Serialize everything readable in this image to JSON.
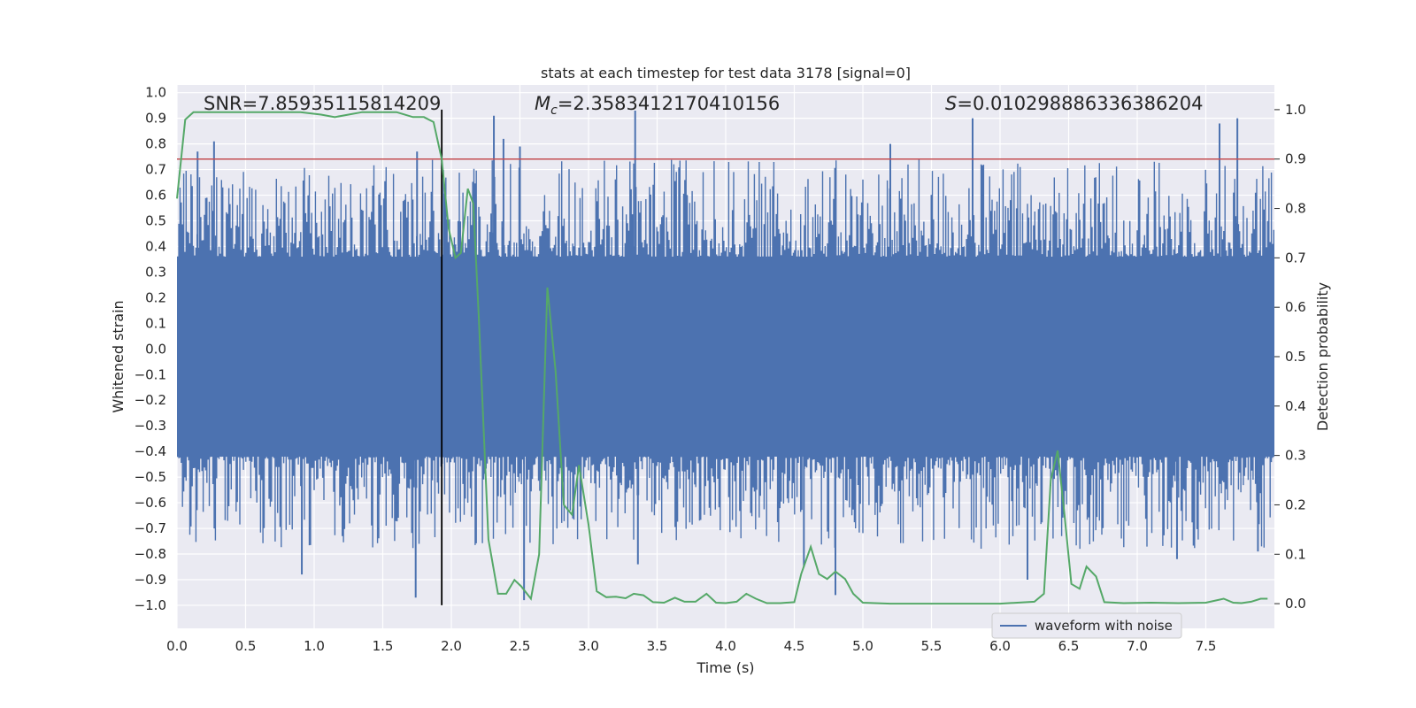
{
  "chart_data": {
    "type": "line",
    "title": "stats at each timestep for test data 3178 [signal=0]",
    "xlabel": "Time (s)",
    "ylabel": "Whitened strain",
    "y2label": "Detection probability",
    "xlim": [
      0.0,
      8.0
    ],
    "ylim": [
      -1.09,
      1.03
    ],
    "y2lim": [
      -0.05,
      1.05
    ],
    "xticks": [
      "0.0",
      "0.5",
      "1.0",
      "1.5",
      "2.0",
      "2.5",
      "3.0",
      "3.5",
      "4.0",
      "4.5",
      "5.0",
      "5.5",
      "6.0",
      "6.5",
      "7.0",
      "7.5"
    ],
    "yticks": [
      "1.0",
      "0.9",
      "0.8",
      "0.7",
      "0.6",
      "0.5",
      "0.4",
      "0.3",
      "0.2",
      "0.1",
      "0.0",
      "-0.1",
      "-0.2",
      "-0.3",
      "-0.4",
      "-0.5",
      "-0.6",
      "-0.7",
      "-0.8",
      "-0.9",
      "-1.0"
    ],
    "y2ticks": [
      "1.0",
      "0.9",
      "0.8",
      "0.7",
      "0.6",
      "0.5",
      "0.4",
      "0.3",
      "0.2",
      "0.1",
      "0.0"
    ],
    "grid": true,
    "annotations": {
      "snr": "SNR=7.85935115814209",
      "mc_symbol": "M",
      "mc_sub": "c",
      "mc_value": "=2.3583412170410156",
      "s_symbol": "S",
      "s_value": "=0.010298886336386204"
    },
    "threshold": 0.9,
    "vertical_marker_time": 1.93,
    "legend": {
      "label": "waveform with noise",
      "placement": "lower-right"
    },
    "series": [
      {
        "name": "waveform with noise",
        "color": "#4c72b0",
        "axis": "left",
        "description": "whitened strain noise, roughly +/-0.35 core with spikes to about +/-0.95",
        "core_range": [
          -0.42,
          0.36
        ],
        "spikes": [
          {
            "t": 0.15,
            "y": 0.77
          },
          {
            "t": 0.27,
            "y": 0.81
          },
          {
            "t": 0.91,
            "y": -0.88
          },
          {
            "t": 1.74,
            "y": -0.97
          },
          {
            "t": 1.75,
            "y": 0.77
          },
          {
            "t": 2.31,
            "y": 0.91
          },
          {
            "t": 2.38,
            "y": 0.82
          },
          {
            "t": 2.5,
            "y": 0.79
          },
          {
            "t": 2.53,
            "y": -0.98
          },
          {
            "t": 3.34,
            "y": 0.93
          },
          {
            "t": 3.36,
            "y": -0.84
          },
          {
            "t": 4.57,
            "y": -0.85
          },
          {
            "t": 4.8,
            "y": -0.96
          },
          {
            "t": 5.2,
            "y": 0.8
          },
          {
            "t": 5.8,
            "y": 0.9
          },
          {
            "t": 6.2,
            "y": -0.9
          },
          {
            "t": 7.29,
            "y": -0.82
          },
          {
            "t": 7.6,
            "y": 0.88
          },
          {
            "t": 7.73,
            "y": 0.9
          },
          {
            "t": 7.88,
            "y": -0.79
          }
        ]
      },
      {
        "name": "detection probability",
        "color": "#55a868",
        "axis": "right",
        "points": [
          [
            0.0,
            0.82
          ],
          [
            0.06,
            0.98
          ],
          [
            0.12,
            0.995
          ],
          [
            0.3,
            0.995
          ],
          [
            0.6,
            0.995
          ],
          [
            0.9,
            0.995
          ],
          [
            1.05,
            0.99
          ],
          [
            1.15,
            0.985
          ],
          [
            1.25,
            0.99
          ],
          [
            1.35,
            0.995
          ],
          [
            1.6,
            0.995
          ],
          [
            1.72,
            0.985
          ],
          [
            1.8,
            0.985
          ],
          [
            1.87,
            0.975
          ],
          [
            1.93,
            0.9
          ],
          [
            1.98,
            0.76
          ],
          [
            2.03,
            0.7
          ],
          [
            2.07,
            0.71
          ],
          [
            2.12,
            0.84
          ],
          [
            2.16,
            0.81
          ],
          [
            2.2,
            0.58
          ],
          [
            2.27,
            0.13
          ],
          [
            2.34,
            0.02
          ],
          [
            2.4,
            0.02
          ],
          [
            2.46,
            0.048
          ],
          [
            2.51,
            0.035
          ],
          [
            2.58,
            0.01
          ],
          [
            2.64,
            0.1
          ],
          [
            2.7,
            0.64
          ],
          [
            2.76,
            0.47
          ],
          [
            2.82,
            0.2
          ],
          [
            2.88,
            0.18
          ],
          [
            2.93,
            0.28
          ],
          [
            3.0,
            0.16
          ],
          [
            3.06,
            0.025
          ],
          [
            3.13,
            0.013
          ],
          [
            3.2,
            0.014
          ],
          [
            3.27,
            0.011
          ],
          [
            3.33,
            0.02
          ],
          [
            3.4,
            0.017
          ],
          [
            3.47,
            0.003
          ],
          [
            3.55,
            0.002
          ],
          [
            3.63,
            0.012
          ],
          [
            3.7,
            0.004
          ],
          [
            3.78,
            0.004
          ],
          [
            3.86,
            0.02
          ],
          [
            3.93,
            0.002
          ],
          [
            4.0,
            0.001
          ],
          [
            4.08,
            0.004
          ],
          [
            4.15,
            0.02
          ],
          [
            4.22,
            0.01
          ],
          [
            4.3,
            0.001
          ],
          [
            4.4,
            0.001
          ],
          [
            4.5,
            0.003
          ],
          [
            4.55,
            0.06
          ],
          [
            4.62,
            0.115
          ],
          [
            4.68,
            0.06
          ],
          [
            4.74,
            0.05
          ],
          [
            4.8,
            0.065
          ],
          [
            4.87,
            0.05
          ],
          [
            4.93,
            0.02
          ],
          [
            5.0,
            0.002
          ],
          [
            5.2,
            0.0
          ],
          [
            5.6,
            0.0
          ],
          [
            6.0,
            0.0
          ],
          [
            6.25,
            0.004
          ],
          [
            6.32,
            0.02
          ],
          [
            6.37,
            0.25
          ],
          [
            6.42,
            0.31
          ],
          [
            6.47,
            0.18
          ],
          [
            6.52,
            0.04
          ],
          [
            6.58,
            0.03
          ],
          [
            6.63,
            0.075
          ],
          [
            6.7,
            0.055
          ],
          [
            6.76,
            0.003
          ],
          [
            6.9,
            0.001
          ],
          [
            7.1,
            0.002
          ],
          [
            7.3,
            0.001
          ],
          [
            7.5,
            0.002
          ],
          [
            7.63,
            0.01
          ],
          [
            7.7,
            0.002
          ],
          [
            7.76,
            0.001
          ],
          [
            7.83,
            0.004
          ],
          [
            7.9,
            0.01
          ],
          [
            7.95,
            0.01
          ]
        ]
      }
    ]
  }
}
